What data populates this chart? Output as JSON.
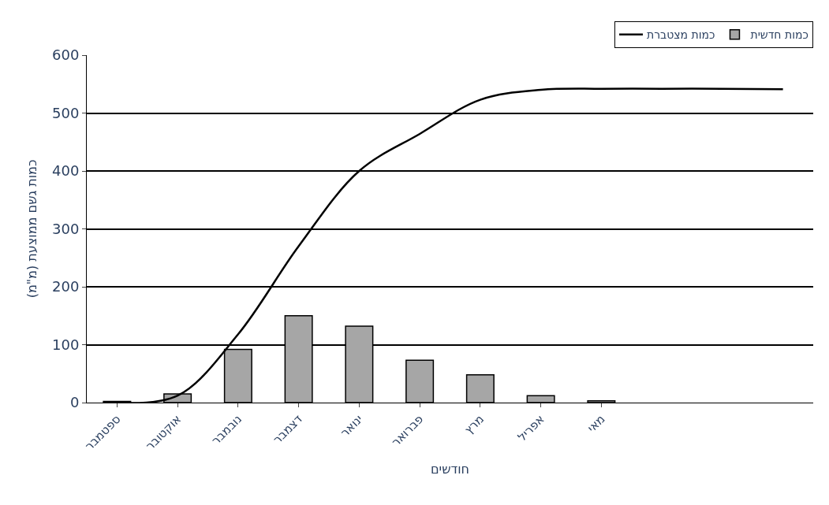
{
  "chart_data": {
    "type": "bar",
    "xlabel": "חודשים",
    "ylabel": "כמות גשם ממוצעת (מ\"מ)",
    "categories": [
      "ספטמבר",
      "אוקטובר",
      "נובמבר",
      "דצמבר",
      "ינואר",
      "פברואר",
      "מרץ",
      "אפריל",
      "מאי",
      null,
      null,
      null
    ],
    "series": [
      {
        "name": "כמות מצטברת",
        "type": "line",
        "color": "#000000",
        "values": [
          0,
          12,
          118,
          270,
          400,
          464,
          523,
          540,
          542,
          542,
          542,
          541
        ]
      },
      {
        "name": "כמות חדשית",
        "color": "#a6a6a6",
        "values": [
          2,
          15,
          92,
          150,
          132,
          73,
          48,
          12,
          3,
          null,
          null,
          null
        ]
      }
    ],
    "ylim": [
      0,
      600
    ],
    "yticks": [
      0,
      100,
      200,
      300,
      400,
      500,
      600
    ],
    "grid": "y",
    "legend": "top right"
  }
}
